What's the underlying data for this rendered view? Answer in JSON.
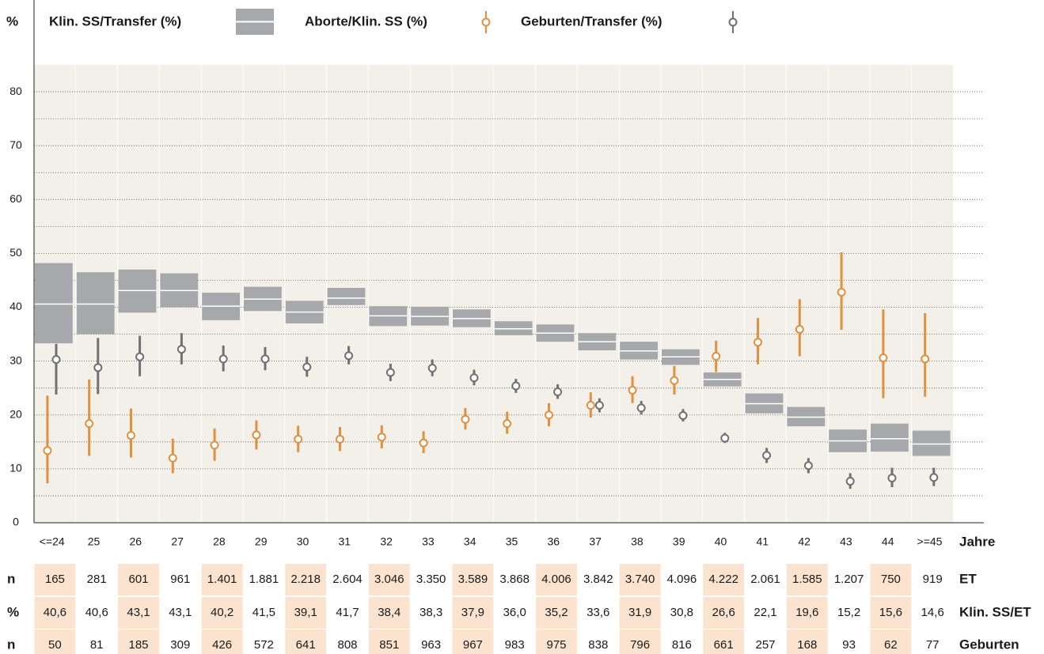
{
  "chart_data": {
    "type": "interval",
    "y_label": "%",
    "x_label": "Jahre",
    "categories": [
      "<=24",
      "25",
      "26",
      "27",
      "28",
      "29",
      "30",
      "31",
      "32",
      "33",
      "34",
      "35",
      "36",
      "37",
      "38",
      "39",
      "40",
      "41",
      "42",
      "43",
      "44",
      ">=45"
    ],
    "ylim": [
      0,
      85
    ],
    "yticks": [
      0,
      10,
      20,
      30,
      40,
      50,
      60,
      70,
      80
    ],
    "yminor": [
      5,
      15,
      25,
      35,
      45,
      55,
      65,
      75
    ],
    "grid": true,
    "series": [
      {
        "name": "Klin. SS/Transfer (%)",
        "kind": "box",
        "color": "#a7a8ab",
        "values": [
          40.6,
          40.6,
          43.1,
          43.1,
          40.2,
          41.5,
          39.1,
          41.7,
          38.4,
          38.3,
          37.9,
          36.0,
          35.2,
          33.6,
          31.9,
          30.8,
          26.6,
          22.1,
          19.6,
          15.2,
          15.6,
          14.6
        ],
        "low": [
          33.3,
          35.0,
          39.0,
          40.0,
          37.6,
          39.3,
          37.0,
          40.4,
          36.5,
          36.6,
          36.3,
          34.8,
          33.6,
          32.0,
          30.3,
          29.3,
          25.3,
          20.3,
          17.9,
          13.1,
          13.2,
          12.4
        ],
        "high": [
          48.2,
          46.5,
          47.0,
          46.3,
          42.7,
          43.8,
          41.2,
          43.6,
          40.2,
          40.1,
          39.6,
          37.4,
          36.8,
          35.2,
          33.6,
          32.2,
          27.9,
          24.0,
          21.5,
          17.3,
          18.4,
          17.1
        ]
      },
      {
        "name": "Aborte/Klin. SS (%)",
        "kind": "errorbar",
        "color": "#e0913f",
        "values": [
          13.4,
          18.4,
          16.2,
          12.0,
          14.4,
          16.3,
          15.5,
          15.5,
          15.9,
          14.8,
          19.2,
          18.4,
          20.0,
          21.8,
          24.6,
          26.4,
          30.9,
          33.5,
          35.9,
          42.8,
          30.6,
          30.4
        ],
        "low": [
          7.3,
          12.4,
          12.1,
          9.2,
          11.5,
          13.6,
          13.1,
          13.3,
          13.8,
          12.9,
          17.3,
          16.5,
          17.9,
          19.5,
          22.2,
          23.8,
          28.0,
          29.4,
          30.9,
          35.8,
          23.1,
          23.4
        ],
        "high": [
          23.6,
          26.6,
          21.2,
          15.6,
          17.5,
          19.0,
          18.0,
          17.8,
          18.1,
          17.0,
          21.3,
          20.6,
          22.2,
          24.2,
          27.2,
          29.1,
          33.8,
          38.0,
          41.5,
          50.2,
          39.6,
          38.9
        ]
      },
      {
        "name": "Geburten/Transfer (%)",
        "kind": "errorbar",
        "color": "#707173",
        "values": [
          30.3,
          28.8,
          30.8,
          32.2,
          30.4,
          30.4,
          28.9,
          31.0,
          27.9,
          28.7,
          26.9,
          25.4,
          24.3,
          21.8,
          21.3,
          19.9,
          15.7,
          12.5,
          10.6,
          7.7,
          8.3,
          8.4
        ],
        "low": [
          23.8,
          23.9,
          27.2,
          29.4,
          28.1,
          28.3,
          27.1,
          29.4,
          26.3,
          27.2,
          25.5,
          24.1,
          23.0,
          20.5,
          20.1,
          18.8,
          14.8,
          11.1,
          9.2,
          6.3,
          6.6,
          6.8
        ],
        "high": [
          33.2,
          34.3,
          34.7,
          35.2,
          32.9,
          32.6,
          30.8,
          32.8,
          29.5,
          30.3,
          28.4,
          26.7,
          25.7,
          23.1,
          22.6,
          21.1,
          16.7,
          13.9,
          12.0,
          9.2,
          10.2,
          10.2
        ]
      }
    ]
  },
  "table": {
    "rows": [
      {
        "unit": "n",
        "label": "ET",
        "cells": [
          "165",
          "281",
          "601",
          "961",
          "1.401",
          "1.881",
          "2.218",
          "2.604",
          "3.046",
          "3.350",
          "3.589",
          "3.868",
          "4.006",
          "3.842",
          "3.740",
          "4.096",
          "4.222",
          "2.061",
          "1.585",
          "1.207",
          "750",
          "919"
        ]
      },
      {
        "unit": "%",
        "label": "Klin. SS/ET",
        "cells": [
          "40,6",
          "40,6",
          "43,1",
          "43,1",
          "40,2",
          "41,5",
          "39,1",
          "41,7",
          "38,4",
          "38,3",
          "37,9",
          "36,0",
          "35,2",
          "33,6",
          "31,9",
          "30,8",
          "26,6",
          "22,1",
          "19,6",
          "15,2",
          "15,6",
          "14,6"
        ]
      },
      {
        "unit": "n",
        "label": "Geburten",
        "cells": [
          "50",
          "81",
          "185",
          "309",
          "426",
          "572",
          "641",
          "808",
          "851",
          "963",
          "967",
          "983",
          "975",
          "838",
          "796",
          "816",
          "661",
          "257",
          "168",
          "93",
          "62",
          "77"
        ]
      }
    ]
  }
}
